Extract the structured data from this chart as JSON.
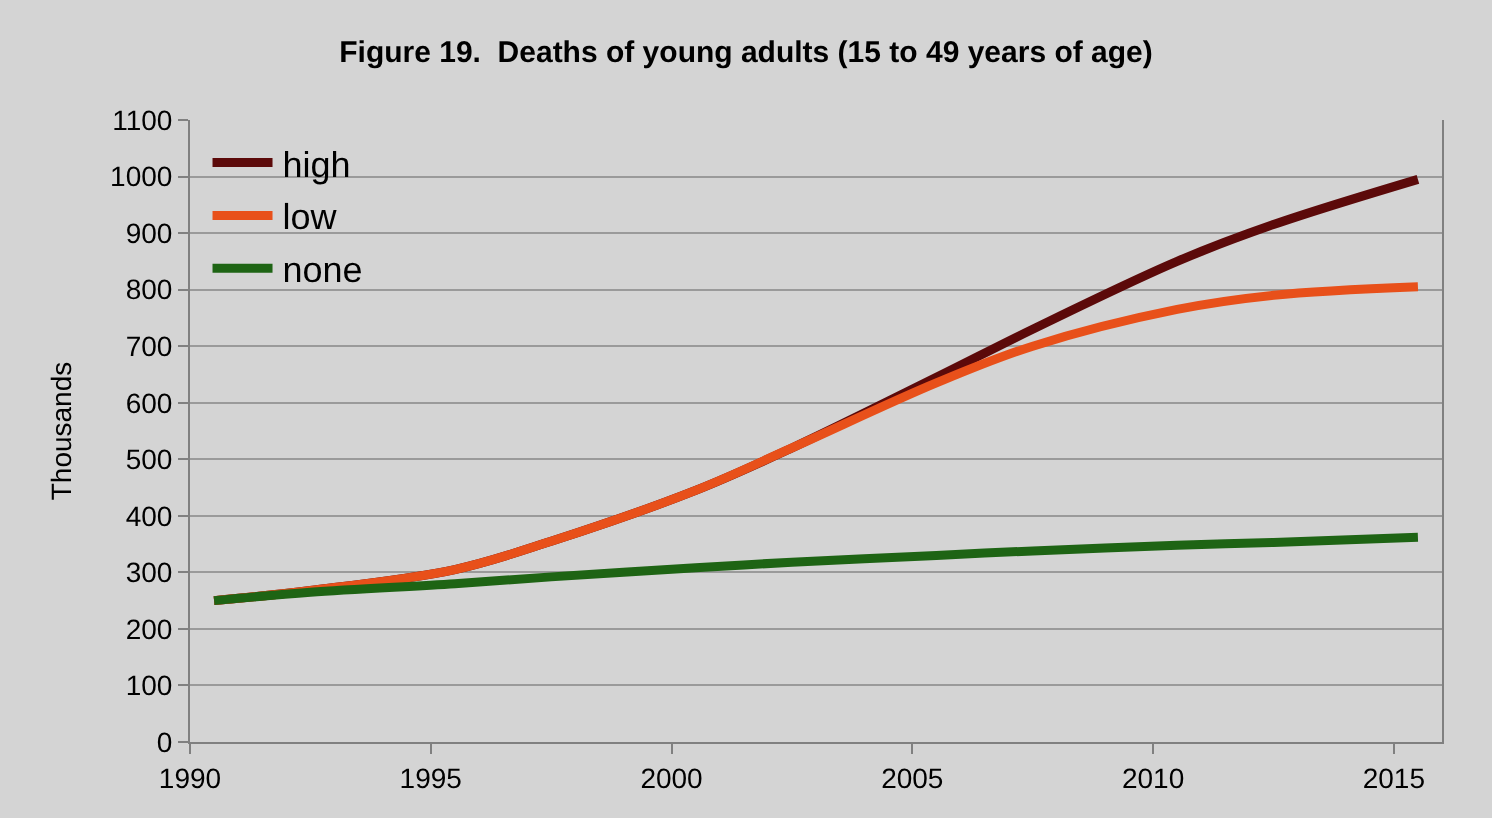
{
  "chart_data": {
    "type": "line",
    "title": "Figure 19.  Deaths of young adults (15 to 49 years of age)",
    "ylabel": "Thousands",
    "x": [
      1990.5,
      1992.5,
      1995.5,
      1997.5,
      2000.5,
      2002.5,
      2005.5,
      2007.5,
      2010.5,
      2012.5,
      2015.5
    ],
    "series": [
      {
        "name": "high",
        "color": "#5c0a0a",
        "values": [
          250,
          268,
          305,
          355,
          445,
          520,
          645,
          730,
          850,
          915,
          995
        ]
      },
      {
        "name": "low",
        "color": "#e8501a",
        "values": [
          250,
          268,
          305,
          355,
          445,
          520,
          635,
          700,
          765,
          790,
          805
        ]
      },
      {
        "name": "none",
        "color": "#1e6414",
        "values": [
          250,
          265,
          280,
          292,
          308,
          318,
          330,
          338,
          348,
          353,
          362
        ]
      }
    ],
    "xlim": [
      1990,
      2016
    ],
    "xticks": [
      1990,
      1995,
      2000,
      2005,
      2010,
      2015
    ],
    "ylim": [
      0,
      1100
    ],
    "yticks": [
      0,
      100,
      200,
      300,
      400,
      500,
      600,
      700,
      800,
      900,
      1000,
      1100
    ],
    "grid": "y",
    "legend": "top left",
    "marker": "none",
    "line_style": "solid"
  }
}
